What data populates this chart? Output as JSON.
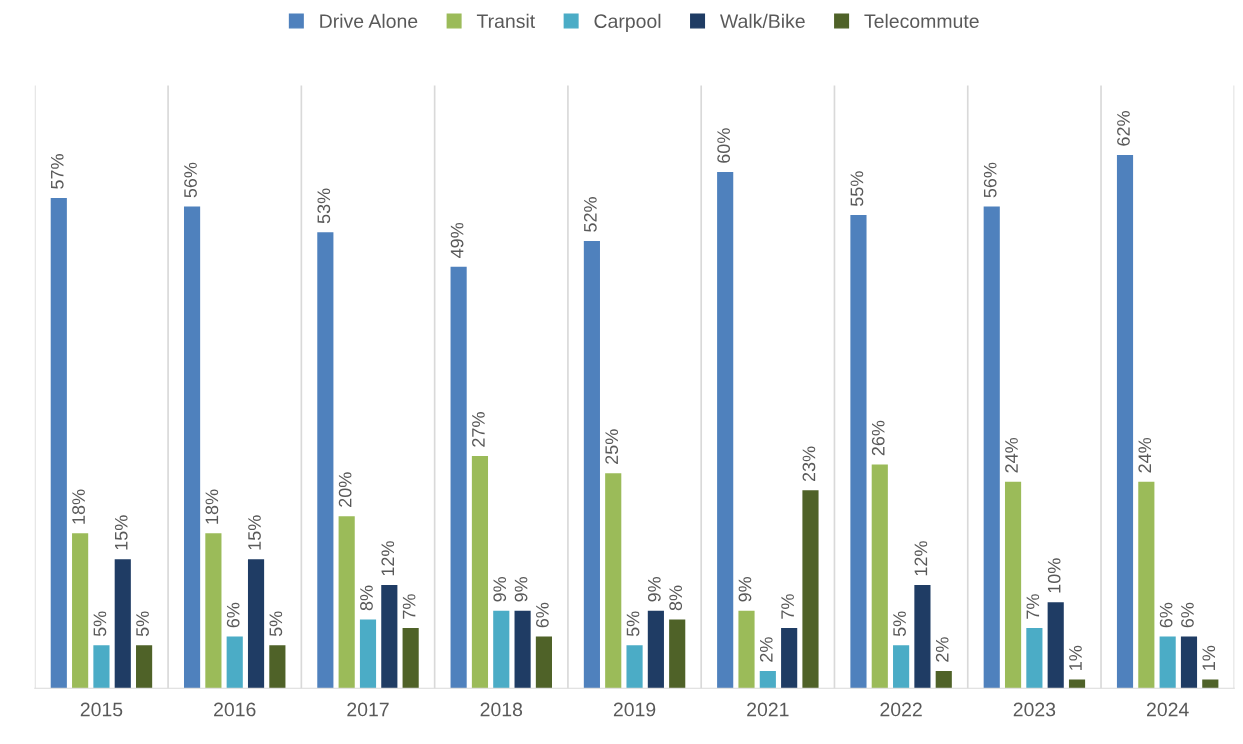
{
  "chart_data": {
    "type": "bar",
    "categories": [
      "2015",
      "2016",
      "2017",
      "2018",
      "2019",
      "2021",
      "2022",
      "2023",
      "2024"
    ],
    "series": [
      {
        "name": "Drive Alone",
        "color": "#4f81bd",
        "values": [
          57,
          56,
          53,
          49,
          52,
          60,
          55,
          56,
          62
        ],
        "value_labels": [
          "57%",
          "56%",
          "53%",
          "49%",
          "52%",
          "60%",
          "55%",
          "56%",
          "62%"
        ]
      },
      {
        "name": "Transit",
        "color": "#9bbb59",
        "values": [
          18,
          18,
          20,
          27,
          25,
          9,
          26,
          24,
          24
        ],
        "value_labels": [
          "18%",
          "18%",
          "20%",
          "27%",
          "25%",
          "9%",
          "26%",
          "24%",
          "24%"
        ]
      },
      {
        "name": "Carpool",
        "color": "#4bacc6",
        "values": [
          5,
          6,
          8,
          9,
          5,
          2,
          5,
          7,
          6
        ],
        "value_labels": [
          "5%",
          "6%",
          "8%",
          "9%",
          "5%",
          "2%",
          "5%",
          "7%",
          "6%"
        ]
      },
      {
        "name": "Walk/Bike",
        "color": "#1f3c64",
        "values": [
          15,
          15,
          12,
          9,
          9,
          7,
          12,
          10,
          6
        ],
        "value_labels": [
          "15%",
          "15%",
          "12%",
          "9%",
          "9%",
          "7%",
          "12%",
          "10%",
          "6%"
        ]
      },
      {
        "name": "Telecommute",
        "color": "#4f6228",
        "values": [
          5,
          5,
          7,
          6,
          8,
          23,
          2,
          1,
          1
        ],
        "value_labels": [
          "5%",
          "5%",
          "7%",
          "6%",
          "8%",
          "23%",
          "2%",
          "1%",
          "1%"
        ]
      }
    ],
    "legend": "top",
    "grid": false,
    "tick_labels": "x"
  }
}
